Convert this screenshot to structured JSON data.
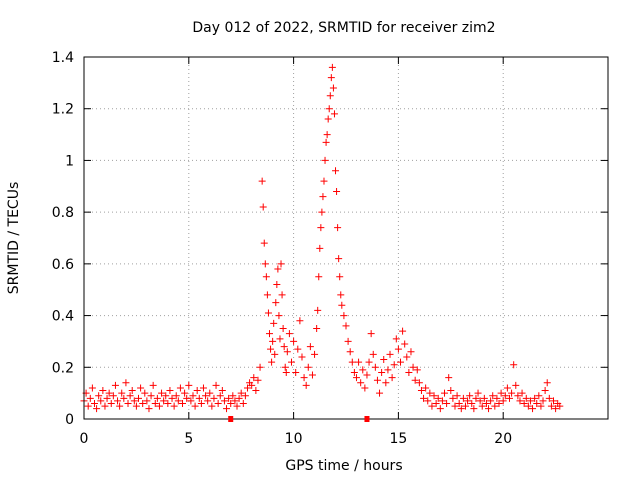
{
  "chart_data": {
    "type": "scatter",
    "title": "Day 012 of 2022, SRMTID for receiver zim2",
    "xlabel": "GPS time / hours",
    "ylabel": "SRMTID / TECUs",
    "xlim": [
      0,
      25
    ],
    "ylim": [
      0,
      1.4
    ],
    "xticks": [
      0,
      5,
      10,
      15,
      20
    ],
    "yticks": [
      0,
      0.2,
      0.4,
      0.6,
      0.8,
      1,
      1.2,
      1.4
    ],
    "xtick_labels": [
      "0",
      "5",
      "10",
      "15",
      "20"
    ],
    "ytick_labels": [
      "0",
      "0.2",
      "0.4",
      "0.6",
      "0.8",
      "1",
      "1.2",
      "1.4"
    ],
    "grid": true,
    "marker": "+",
    "color": "#ff0000",
    "axis_markers": [
      7.0,
      13.5
    ],
    "series": [
      {
        "name": "SRMTID",
        "points": [
          [
            0.0,
            0.07
          ],
          [
            0.1,
            0.1
          ],
          [
            0.2,
            0.05
          ],
          [
            0.3,
            0.08
          ],
          [
            0.4,
            0.12
          ],
          [
            0.5,
            0.06
          ],
          [
            0.6,
            0.04
          ],
          [
            0.7,
            0.09
          ],
          [
            0.8,
            0.07
          ],
          [
            0.9,
            0.11
          ],
          [
            1.0,
            0.05
          ],
          [
            1.1,
            0.08
          ],
          [
            1.2,
            0.1
          ],
          [
            1.3,
            0.06
          ],
          [
            1.4,
            0.09
          ],
          [
            1.5,
            0.13
          ],
          [
            1.6,
            0.07
          ],
          [
            1.7,
            0.05
          ],
          [
            1.8,
            0.1
          ],
          [
            1.9,
            0.08
          ],
          [
            2.0,
            0.14
          ],
          [
            2.1,
            0.06
          ],
          [
            2.2,
            0.09
          ],
          [
            2.3,
            0.11
          ],
          [
            2.4,
            0.07
          ],
          [
            2.5,
            0.05
          ],
          [
            2.6,
            0.08
          ],
          [
            2.7,
            0.12
          ],
          [
            2.8,
            0.06
          ],
          [
            2.9,
            0.1
          ],
          [
            3.0,
            0.07
          ],
          [
            3.1,
            0.04
          ],
          [
            3.2,
            0.09
          ],
          [
            3.3,
            0.13
          ],
          [
            3.4,
            0.06
          ],
          [
            3.5,
            0.08
          ],
          [
            3.6,
            0.05
          ],
          [
            3.7,
            0.1
          ],
          [
            3.8,
            0.07
          ],
          [
            3.9,
            0.09
          ],
          [
            4.0,
            0.06
          ],
          [
            4.1,
            0.11
          ],
          [
            4.2,
            0.08
          ],
          [
            4.3,
            0.05
          ],
          [
            4.4,
            0.09
          ],
          [
            4.5,
            0.07
          ],
          [
            4.6,
            0.12
          ],
          [
            4.7,
            0.06
          ],
          [
            4.8,
            0.1
          ],
          [
            4.9,
            0.08
          ],
          [
            5.0,
            0.13
          ],
          [
            5.1,
            0.07
          ],
          [
            5.2,
            0.09
          ],
          [
            5.3,
            0.05
          ],
          [
            5.4,
            0.11
          ],
          [
            5.5,
            0.08
          ],
          [
            5.6,
            0.06
          ],
          [
            5.7,
            0.12
          ],
          [
            5.8,
            0.09
          ],
          [
            5.9,
            0.07
          ],
          [
            6.0,
            0.1
          ],
          [
            6.1,
            0.05
          ],
          [
            6.2,
            0.08
          ],
          [
            6.3,
            0.13
          ],
          [
            6.4,
            0.06
          ],
          [
            6.5,
            0.09
          ],
          [
            6.6,
            0.11
          ],
          [
            6.7,
            0.07
          ],
          [
            6.8,
            0.04
          ],
          [
            6.9,
            0.08
          ],
          [
            7.0,
            0.06
          ],
          [
            7.1,
            0.09
          ],
          [
            7.2,
            0.07
          ],
          [
            7.3,
            0.05
          ],
          [
            7.4,
            0.08
          ],
          [
            7.5,
            0.1
          ],
          [
            7.6,
            0.06
          ],
          [
            7.7,
            0.09
          ],
          [
            7.8,
            0.12
          ],
          [
            7.9,
            0.14
          ],
          [
            8.0,
            0.13
          ],
          [
            8.1,
            0.16
          ],
          [
            8.2,
            0.11
          ],
          [
            8.3,
            0.15
          ],
          [
            8.4,
            0.2
          ],
          [
            8.5,
            0.92
          ],
          [
            8.55,
            0.82
          ],
          [
            8.6,
            0.68
          ],
          [
            8.65,
            0.6
          ],
          [
            8.7,
            0.55
          ],
          [
            8.75,
            0.48
          ],
          [
            8.8,
            0.41
          ],
          [
            8.85,
            0.33
          ],
          [
            8.9,
            0.27
          ],
          [
            8.95,
            0.22
          ],
          [
            9.0,
            0.3
          ],
          [
            9.05,
            0.37
          ],
          [
            9.1,
            0.25
          ],
          [
            9.15,
            0.45
          ],
          [
            9.2,
            0.52
          ],
          [
            9.25,
            0.58
          ],
          [
            9.3,
            0.4
          ],
          [
            9.35,
            0.31
          ],
          [
            9.4,
            0.6
          ],
          [
            9.45,
            0.48
          ],
          [
            9.5,
            0.35
          ],
          [
            9.55,
            0.28
          ],
          [
            9.6,
            0.2
          ],
          [
            9.65,
            0.18
          ],
          [
            9.7,
            0.26
          ],
          [
            9.8,
            0.33
          ],
          [
            9.9,
            0.22
          ],
          [
            10.0,
            0.3
          ],
          [
            10.1,
            0.18
          ],
          [
            10.2,
            0.27
          ],
          [
            10.3,
            0.38
          ],
          [
            10.4,
            0.24
          ],
          [
            10.5,
            0.16
          ],
          [
            10.6,
            0.13
          ],
          [
            10.7,
            0.2
          ],
          [
            10.8,
            0.28
          ],
          [
            10.9,
            0.17
          ],
          [
            11.0,
            0.25
          ],
          [
            11.1,
            0.35
          ],
          [
            11.15,
            0.42
          ],
          [
            11.2,
            0.55
          ],
          [
            11.25,
            0.66
          ],
          [
            11.3,
            0.74
          ],
          [
            11.35,
            0.8
          ],
          [
            11.4,
            0.86
          ],
          [
            11.45,
            0.92
          ],
          [
            11.5,
            1.0
          ],
          [
            11.55,
            1.07
          ],
          [
            11.6,
            1.1
          ],
          [
            11.65,
            1.16
          ],
          [
            11.7,
            1.2
          ],
          [
            11.75,
            1.25
          ],
          [
            11.8,
            1.32
          ],
          [
            11.85,
            1.36
          ],
          [
            11.9,
            1.28
          ],
          [
            11.95,
            1.18
          ],
          [
            12.0,
            0.96
          ],
          [
            12.05,
            0.88
          ],
          [
            12.1,
            0.74
          ],
          [
            12.15,
            0.62
          ],
          [
            12.2,
            0.55
          ],
          [
            12.25,
            0.48
          ],
          [
            12.3,
            0.44
          ],
          [
            12.4,
            0.4
          ],
          [
            12.5,
            0.36
          ],
          [
            12.6,
            0.3
          ],
          [
            12.7,
            0.26
          ],
          [
            12.8,
            0.22
          ],
          [
            12.9,
            0.18
          ],
          [
            13.0,
            0.16
          ],
          [
            13.1,
            0.22
          ],
          [
            13.2,
            0.14
          ],
          [
            13.3,
            0.19
          ],
          [
            13.4,
            0.12
          ],
          [
            13.5,
            0.17
          ],
          [
            13.6,
            0.22
          ],
          [
            13.7,
            0.33
          ],
          [
            13.8,
            0.25
          ],
          [
            13.9,
            0.2
          ],
          [
            14.0,
            0.15
          ],
          [
            14.1,
            0.1
          ],
          [
            14.2,
            0.18
          ],
          [
            14.3,
            0.23
          ],
          [
            14.4,
            0.14
          ],
          [
            14.5,
            0.19
          ],
          [
            14.6,
            0.25
          ],
          [
            14.7,
            0.16
          ],
          [
            14.8,
            0.21
          ],
          [
            14.9,
            0.31
          ],
          [
            15.0,
            0.27
          ],
          [
            15.1,
            0.22
          ],
          [
            15.2,
            0.34
          ],
          [
            15.3,
            0.29
          ],
          [
            15.4,
            0.24
          ],
          [
            15.5,
            0.18
          ],
          [
            15.6,
            0.26
          ],
          [
            15.7,
            0.2
          ],
          [
            15.8,
            0.15
          ],
          [
            15.9,
            0.19
          ],
          [
            16.0,
            0.14
          ],
          [
            16.1,
            0.11
          ],
          [
            16.2,
            0.08
          ],
          [
            16.3,
            0.12
          ],
          [
            16.4,
            0.07
          ],
          [
            16.5,
            0.1
          ],
          [
            16.6,
            0.05
          ],
          [
            16.7,
            0.09
          ],
          [
            16.8,
            0.06
          ],
          [
            16.9,
            0.08
          ],
          [
            17.0,
            0.04
          ],
          [
            17.1,
            0.07
          ],
          [
            17.2,
            0.1
          ],
          [
            17.3,
            0.06
          ],
          [
            17.4,
            0.16
          ],
          [
            17.5,
            0.11
          ],
          [
            17.6,
            0.08
          ],
          [
            17.7,
            0.05
          ],
          [
            17.8,
            0.09
          ],
          [
            17.9,
            0.06
          ],
          [
            18.0,
            0.04
          ],
          [
            18.1,
            0.08
          ],
          [
            18.2,
            0.05
          ],
          [
            18.3,
            0.07
          ],
          [
            18.4,
            0.09
          ],
          [
            18.5,
            0.06
          ],
          [
            18.6,
            0.04
          ],
          [
            18.7,
            0.08
          ],
          [
            18.8,
            0.1
          ],
          [
            18.9,
            0.07
          ],
          [
            19.0,
            0.05
          ],
          [
            19.1,
            0.08
          ],
          [
            19.2,
            0.06
          ],
          [
            19.3,
            0.04
          ],
          [
            19.4,
            0.07
          ],
          [
            19.5,
            0.09
          ],
          [
            19.6,
            0.05
          ],
          [
            19.7,
            0.08
          ],
          [
            19.8,
            0.06
          ],
          [
            19.9,
            0.1
          ],
          [
            20.0,
            0.07
          ],
          [
            20.1,
            0.09
          ],
          [
            20.2,
            0.12
          ],
          [
            20.3,
            0.08
          ],
          [
            20.4,
            0.1
          ],
          [
            20.5,
            0.21
          ],
          [
            20.6,
            0.13
          ],
          [
            20.7,
            0.09
          ],
          [
            20.8,
            0.07
          ],
          [
            20.9,
            0.1
          ],
          [
            21.0,
            0.06
          ],
          [
            21.1,
            0.08
          ],
          [
            21.2,
            0.05
          ],
          [
            21.3,
            0.07
          ],
          [
            21.4,
            0.04
          ],
          [
            21.5,
            0.08
          ],
          [
            21.6,
            0.06
          ],
          [
            21.7,
            0.09
          ],
          [
            21.8,
            0.05
          ],
          [
            21.9,
            0.07
          ],
          [
            22.0,
            0.11
          ],
          [
            22.1,
            0.14
          ],
          [
            22.2,
            0.08
          ],
          [
            22.3,
            0.05
          ],
          [
            22.4,
            0.07
          ],
          [
            22.5,
            0.04
          ],
          [
            22.6,
            0.06
          ],
          [
            22.7,
            0.05
          ]
        ]
      }
    ]
  }
}
